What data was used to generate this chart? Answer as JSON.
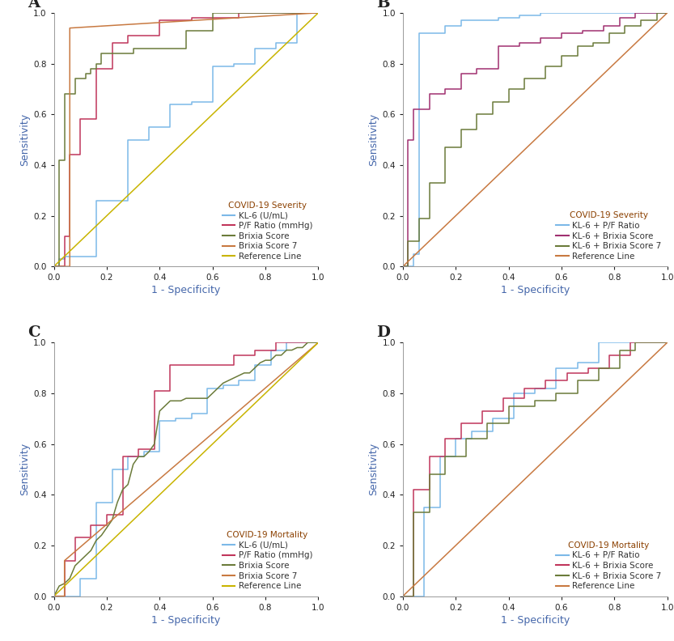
{
  "panel_A": {
    "title": "COVID-19 Severity",
    "curves": [
      {
        "label": "KL-6 (U/mL)",
        "color": "#7CB9E8",
        "x": [
          0.0,
          0.02,
          0.02,
          0.04,
          0.04,
          0.16,
          0.16,
          0.28,
          0.28,
          0.36,
          0.36,
          0.44,
          0.44,
          0.52,
          0.52,
          0.6,
          0.6,
          0.68,
          0.68,
          0.76,
          0.76,
          0.84,
          0.84,
          0.92,
          0.92,
          1.0
        ],
        "y": [
          0.0,
          0.0,
          0.03,
          0.03,
          0.04,
          0.04,
          0.26,
          0.26,
          0.5,
          0.5,
          0.55,
          0.55,
          0.64,
          0.64,
          0.65,
          0.65,
          0.79,
          0.79,
          0.8,
          0.8,
          0.86,
          0.86,
          0.88,
          0.88,
          1.0,
          1.0
        ]
      },
      {
        "label": "P/F Ratio (mmHg)",
        "color": "#C0355B",
        "x": [
          0.0,
          0.04,
          0.04,
          0.06,
          0.06,
          0.1,
          0.1,
          0.16,
          0.16,
          0.22,
          0.22,
          0.28,
          0.28,
          0.4,
          0.4,
          0.52,
          0.52,
          0.7,
          0.7,
          0.78,
          0.78,
          1.0
        ],
        "y": [
          0.0,
          0.0,
          0.12,
          0.12,
          0.44,
          0.44,
          0.58,
          0.58,
          0.78,
          0.78,
          0.88,
          0.88,
          0.91,
          0.91,
          0.97,
          0.97,
          0.98,
          0.98,
          1.0,
          1.0,
          1.0,
          1.0
        ]
      },
      {
        "label": "Brixia Score",
        "color": "#6B7B3A",
        "x": [
          0.0,
          0.02,
          0.02,
          0.04,
          0.04,
          0.08,
          0.08,
          0.12,
          0.12,
          0.14,
          0.14,
          0.16,
          0.16,
          0.18,
          0.18,
          0.22,
          0.22,
          0.3,
          0.3,
          0.4,
          0.4,
          0.5,
          0.5,
          0.6,
          0.6,
          1.0
        ],
        "y": [
          0.0,
          0.0,
          0.42,
          0.42,
          0.68,
          0.68,
          0.74,
          0.74,
          0.76,
          0.76,
          0.78,
          0.78,
          0.8,
          0.8,
          0.84,
          0.84,
          0.84,
          0.84,
          0.86,
          0.86,
          0.86,
          0.86,
          0.93,
          0.93,
          1.0,
          1.0
        ]
      },
      {
        "label": "Brixia Score 7",
        "color": "#C87941",
        "x": [
          0.0,
          0.06,
          0.06,
          1.0
        ],
        "y": [
          0.0,
          0.0,
          0.94,
          1.0
        ]
      },
      {
        "label": "Reference Line",
        "color": "#C8B400",
        "x": [
          0.0,
          1.0
        ],
        "y": [
          0.0,
          1.0
        ]
      }
    ]
  },
  "panel_B": {
    "title": "COVID-19 Severity",
    "curves": [
      {
        "label": "KL-6 + P/F Ratio",
        "color": "#7CB9E8",
        "x": [
          0.0,
          0.04,
          0.04,
          0.06,
          0.06,
          0.16,
          0.16,
          0.22,
          0.22,
          0.28,
          0.28,
          0.36,
          0.36,
          0.44,
          0.44,
          0.52,
          0.52,
          0.6,
          0.6,
          0.72,
          0.72,
          0.8,
          0.8,
          0.88,
          0.88,
          1.0
        ],
        "y": [
          0.0,
          0.0,
          0.05,
          0.05,
          0.92,
          0.92,
          0.95,
          0.95,
          0.97,
          0.97,
          0.97,
          0.97,
          0.98,
          0.98,
          0.99,
          0.99,
          1.0,
          1.0,
          1.0,
          1.0,
          1.0,
          1.0,
          1.0,
          1.0,
          1.0,
          1.0
        ]
      },
      {
        "label": "KL-6 + Brixia Score",
        "color": "#A03070",
        "x": [
          0.0,
          0.02,
          0.02,
          0.04,
          0.04,
          0.1,
          0.1,
          0.16,
          0.16,
          0.22,
          0.22,
          0.28,
          0.28,
          0.36,
          0.36,
          0.44,
          0.44,
          0.52,
          0.52,
          0.6,
          0.6,
          0.68,
          0.68,
          0.76,
          0.76,
          0.82,
          0.82,
          0.88,
          0.88,
          0.92,
          0.92,
          0.96,
          0.96,
          1.0
        ],
        "y": [
          0.0,
          0.0,
          0.5,
          0.5,
          0.62,
          0.62,
          0.68,
          0.68,
          0.7,
          0.7,
          0.76,
          0.76,
          0.78,
          0.78,
          0.87,
          0.87,
          0.88,
          0.88,
          0.9,
          0.9,
          0.92,
          0.92,
          0.93,
          0.93,
          0.95,
          0.95,
          0.98,
          0.98,
          1.0,
          1.0,
          1.0,
          1.0,
          1.0,
          1.0
        ]
      },
      {
        "label": "KL-6 + Brixia Score 7",
        "color": "#6B7B3A",
        "x": [
          0.0,
          0.02,
          0.02,
          0.06,
          0.06,
          0.1,
          0.1,
          0.16,
          0.16,
          0.22,
          0.22,
          0.28,
          0.28,
          0.34,
          0.34,
          0.4,
          0.4,
          0.46,
          0.46,
          0.54,
          0.54,
          0.6,
          0.6,
          0.66,
          0.66,
          0.72,
          0.72,
          0.78,
          0.78,
          0.84,
          0.84,
          0.9,
          0.9,
          0.96,
          0.96,
          1.0
        ],
        "y": [
          0.0,
          0.0,
          0.1,
          0.1,
          0.19,
          0.19,
          0.33,
          0.33,
          0.47,
          0.47,
          0.54,
          0.54,
          0.6,
          0.6,
          0.65,
          0.65,
          0.7,
          0.7,
          0.74,
          0.74,
          0.79,
          0.79,
          0.83,
          0.83,
          0.87,
          0.87,
          0.88,
          0.88,
          0.92,
          0.92,
          0.95,
          0.95,
          0.97,
          0.97,
          1.0,
          1.0
        ]
      },
      {
        "label": "Reference Line",
        "color": "#C87941",
        "x": [
          0.0,
          1.0
        ],
        "y": [
          0.0,
          1.0
        ]
      }
    ]
  },
  "panel_C": {
    "title": "COVID-19 Mortality",
    "curves": [
      {
        "label": "KL-6 (U/mL)",
        "color": "#7CB9E8",
        "x": [
          0.0,
          0.1,
          0.1,
          0.16,
          0.16,
          0.22,
          0.22,
          0.28,
          0.28,
          0.34,
          0.34,
          0.4,
          0.4,
          0.46,
          0.46,
          0.52,
          0.52,
          0.58,
          0.58,
          0.64,
          0.64,
          0.7,
          0.7,
          0.76,
          0.76,
          0.82,
          0.82,
          0.88,
          0.88,
          0.94,
          0.94,
          1.0
        ],
        "y": [
          0.0,
          0.0,
          0.07,
          0.07,
          0.37,
          0.37,
          0.5,
          0.5,
          0.55,
          0.55,
          0.57,
          0.57,
          0.69,
          0.69,
          0.7,
          0.7,
          0.72,
          0.72,
          0.82,
          0.82,
          0.83,
          0.83,
          0.85,
          0.85,
          0.91,
          0.91,
          0.97,
          0.97,
          1.0,
          1.0,
          1.0,
          1.0
        ]
      },
      {
        "label": "P/F Ratio (mmHg)",
        "color": "#C0355B",
        "x": [
          0.0,
          0.04,
          0.04,
          0.08,
          0.08,
          0.14,
          0.14,
          0.2,
          0.2,
          0.26,
          0.26,
          0.32,
          0.32,
          0.38,
          0.38,
          0.44,
          0.44,
          0.52,
          0.52,
          0.6,
          0.6,
          0.68,
          0.68,
          0.76,
          0.76,
          0.84,
          0.84,
          0.92,
          0.92,
          1.0
        ],
        "y": [
          0.0,
          0.0,
          0.14,
          0.14,
          0.23,
          0.23,
          0.28,
          0.28,
          0.32,
          0.32,
          0.55,
          0.55,
          0.58,
          0.58,
          0.81,
          0.81,
          0.91,
          0.91,
          0.91,
          0.91,
          0.91,
          0.91,
          0.95,
          0.95,
          0.97,
          0.97,
          1.0,
          1.0,
          1.0,
          1.0
        ]
      },
      {
        "label": "Brixia Score",
        "color": "#6B7B3A",
        "x": [
          0.0,
          0.02,
          0.04,
          0.06,
          0.08,
          0.1,
          0.12,
          0.14,
          0.16,
          0.18,
          0.2,
          0.22,
          0.24,
          0.26,
          0.28,
          0.3,
          0.32,
          0.34,
          0.36,
          0.38,
          0.4,
          0.42,
          0.44,
          0.46,
          0.48,
          0.5,
          0.52,
          0.54,
          0.56,
          0.58,
          0.6,
          0.62,
          0.64,
          0.66,
          0.68,
          0.7,
          0.72,
          0.74,
          0.76,
          0.78,
          0.8,
          0.82,
          0.84,
          0.86,
          0.88,
          0.9,
          0.92,
          0.94,
          0.96,
          0.98,
          1.0
        ],
        "y": [
          0.0,
          0.04,
          0.05,
          0.07,
          0.12,
          0.14,
          0.16,
          0.18,
          0.22,
          0.24,
          0.27,
          0.3,
          0.37,
          0.42,
          0.44,
          0.52,
          0.55,
          0.55,
          0.57,
          0.6,
          0.73,
          0.75,
          0.77,
          0.77,
          0.77,
          0.78,
          0.78,
          0.78,
          0.78,
          0.78,
          0.8,
          0.82,
          0.84,
          0.85,
          0.86,
          0.87,
          0.88,
          0.88,
          0.9,
          0.92,
          0.93,
          0.93,
          0.95,
          0.95,
          0.97,
          0.97,
          0.98,
          0.98,
          1.0,
          1.0,
          1.0
        ]
      },
      {
        "label": "Brixia Score 7",
        "color": "#C87941",
        "x": [
          0.0,
          0.04,
          0.04,
          1.0
        ],
        "y": [
          0.0,
          0.0,
          0.14,
          1.0
        ]
      },
      {
        "label": "Reference Line",
        "color": "#C8B400",
        "x": [
          0.0,
          1.0
        ],
        "y": [
          0.0,
          1.0
        ]
      }
    ]
  },
  "panel_D": {
    "title": "COVID-19 Mortality",
    "curves": [
      {
        "label": "KL-6 + P/F Ratio",
        "color": "#7CB9E8",
        "x": [
          0.0,
          0.08,
          0.08,
          0.14,
          0.14,
          0.2,
          0.2,
          0.26,
          0.26,
          0.34,
          0.34,
          0.42,
          0.42,
          0.5,
          0.5,
          0.58,
          0.58,
          0.66,
          0.66,
          0.74,
          0.74,
          0.8,
          0.8,
          0.88,
          0.88,
          1.0
        ],
        "y": [
          0.0,
          0.0,
          0.35,
          0.35,
          0.55,
          0.55,
          0.62,
          0.62,
          0.65,
          0.65,
          0.7,
          0.7,
          0.8,
          0.8,
          0.82,
          0.82,
          0.9,
          0.9,
          0.92,
          0.92,
          1.0,
          1.0,
          1.0,
          1.0,
          1.0,
          1.0
        ]
      },
      {
        "label": "KL-6 + Brixia Score",
        "color": "#C0355B",
        "x": [
          0.0,
          0.04,
          0.04,
          0.1,
          0.1,
          0.16,
          0.16,
          0.22,
          0.22,
          0.3,
          0.3,
          0.38,
          0.38,
          0.46,
          0.46,
          0.54,
          0.54,
          0.62,
          0.62,
          0.7,
          0.7,
          0.78,
          0.78,
          0.86,
          0.86,
          0.92,
          0.92,
          1.0
        ],
        "y": [
          0.0,
          0.0,
          0.42,
          0.42,
          0.55,
          0.55,
          0.62,
          0.62,
          0.68,
          0.68,
          0.73,
          0.73,
          0.78,
          0.78,
          0.82,
          0.82,
          0.85,
          0.85,
          0.88,
          0.88,
          0.9,
          0.9,
          0.95,
          0.95,
          1.0,
          1.0,
          1.0,
          1.0
        ]
      },
      {
        "label": "KL-6 + Brixia Score 7",
        "color": "#6B7B3A",
        "x": [
          0.0,
          0.04,
          0.04,
          0.1,
          0.1,
          0.16,
          0.16,
          0.24,
          0.24,
          0.32,
          0.32,
          0.4,
          0.4,
          0.5,
          0.5,
          0.58,
          0.58,
          0.66,
          0.66,
          0.74,
          0.74,
          0.82,
          0.82,
          0.88,
          0.88,
          0.94,
          0.94,
          1.0
        ],
        "y": [
          0.0,
          0.0,
          0.33,
          0.33,
          0.48,
          0.48,
          0.55,
          0.55,
          0.62,
          0.62,
          0.68,
          0.68,
          0.75,
          0.75,
          0.77,
          0.77,
          0.8,
          0.8,
          0.85,
          0.85,
          0.9,
          0.9,
          0.97,
          0.97,
          1.0,
          1.0,
          1.0,
          1.0
        ]
      },
      {
        "label": "Reference Line",
        "color": "#C87941",
        "x": [
          0.0,
          1.0
        ],
        "y": [
          0.0,
          1.0
        ]
      }
    ]
  },
  "panel_labels": [
    "A",
    "B",
    "C",
    "D"
  ],
  "xlabel": "1 - Specificity",
  "ylabel": "Sensitivity",
  "xlim": [
    0.0,
    1.0
  ],
  "ylim": [
    0.0,
    1.0
  ],
  "tick_positions": [
    0.0,
    0.2,
    0.4,
    0.6,
    0.8,
    1.0
  ],
  "background_color": "#FFFFFF",
  "legend_title_color": "#8B4000",
  "axis_label_color": "#4466AA",
  "panel_label_fontsize": 14,
  "legend_fontsize": 7.5,
  "axis_label_fontsize": 9,
  "tick_fontsize": 7.5
}
